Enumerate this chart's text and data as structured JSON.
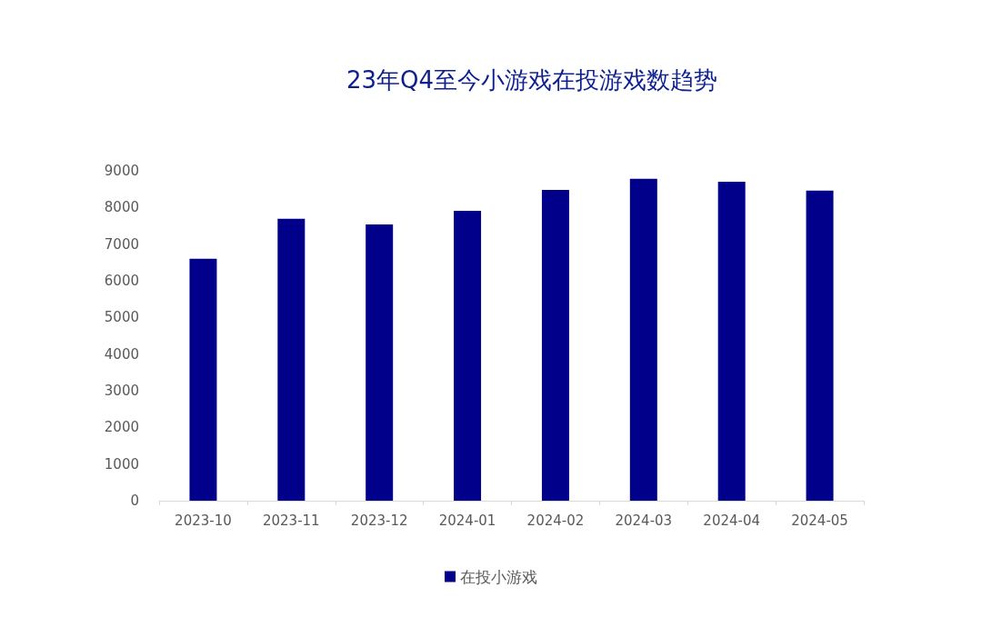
{
  "chart_data": {
    "type": "bar",
    "title": "23年Q4至今小游戏在投游戏数趋势",
    "categories": [
      "2023-10",
      "2023-11",
      "2023-12",
      "2024-01",
      "2024-02",
      "2024-03",
      "2024-04",
      "2024-05"
    ],
    "series": [
      {
        "name": "在投小游戏",
        "color": "#00008b",
        "values": [
          6600,
          7690,
          7540,
          7910,
          8480,
          8780,
          8700,
          8460
        ]
      }
    ],
    "ylim": [
      0,
      9000
    ],
    "yticks": [
      0,
      1000,
      2000,
      3000,
      4000,
      5000,
      6000,
      7000,
      8000,
      9000
    ],
    "grid": false,
    "legend": "bottom"
  }
}
